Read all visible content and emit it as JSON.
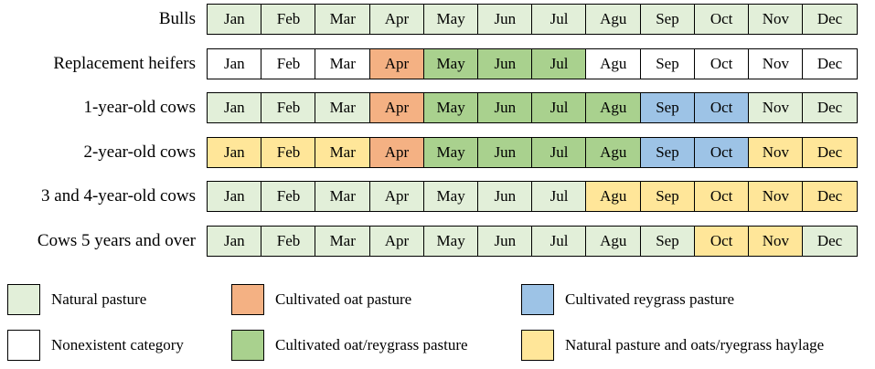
{
  "months": [
    "Jan",
    "Feb",
    "Mar",
    "Apr",
    "May",
    "Jun",
    "Jul",
    "Agu",
    "Sep",
    "Oct",
    "Nov",
    "Dec"
  ],
  "colors": {
    "natural": "#e2efd9",
    "oat": "#f4b183",
    "oat_reygrass": "#a9d18e",
    "reygrass": "#9dc3e6",
    "haylage": "#ffe699",
    "none": "#ffffff"
  },
  "rows": [
    {
      "label": "Bulls",
      "categories": [
        "natural",
        "natural",
        "natural",
        "natural",
        "natural",
        "natural",
        "natural",
        "natural",
        "natural",
        "natural",
        "natural",
        "natural"
      ]
    },
    {
      "label": "Replacement heifers",
      "categories": [
        "none",
        "none",
        "none",
        "oat",
        "oat_reygrass",
        "oat_reygrass",
        "oat_reygrass",
        "none",
        "none",
        "none",
        "none",
        "none"
      ]
    },
    {
      "label": "1-year-old cows",
      "categories": [
        "natural",
        "natural",
        "natural",
        "oat",
        "oat_reygrass",
        "oat_reygrass",
        "oat_reygrass",
        "oat_reygrass",
        "reygrass",
        "reygrass",
        "natural",
        "natural"
      ]
    },
    {
      "label": "2-year-old cows",
      "categories": [
        "haylage",
        "haylage",
        "haylage",
        "oat",
        "oat_reygrass",
        "oat_reygrass",
        "oat_reygrass",
        "oat_reygrass",
        "reygrass",
        "reygrass",
        "haylage",
        "haylage"
      ]
    },
    {
      "label": "3 and 4-year-old cows",
      "categories": [
        "natural",
        "natural",
        "natural",
        "natural",
        "natural",
        "natural",
        "natural",
        "haylage",
        "haylage",
        "haylage",
        "haylage",
        "haylage"
      ]
    },
    {
      "label": "Cows 5 years and over",
      "categories": [
        "natural",
        "natural",
        "natural",
        "natural",
        "natural",
        "natural",
        "natural",
        "natural",
        "natural",
        "haylage",
        "haylage",
        "natural"
      ]
    }
  ],
  "legend": [
    {
      "category": "natural",
      "label": "Natural pasture"
    },
    {
      "category": "oat",
      "label": "Cultivated oat pasture"
    },
    {
      "category": "reygrass",
      "label": "Cultivated reygrass pasture"
    },
    {
      "category": "none",
      "label": "Nonexistent category"
    },
    {
      "category": "oat_reygrass",
      "label": "Cultivated oat/reygrass pasture"
    },
    {
      "category": "haylage",
      "label": "Natural pasture and oats/ryegrass haylage"
    }
  ]
}
